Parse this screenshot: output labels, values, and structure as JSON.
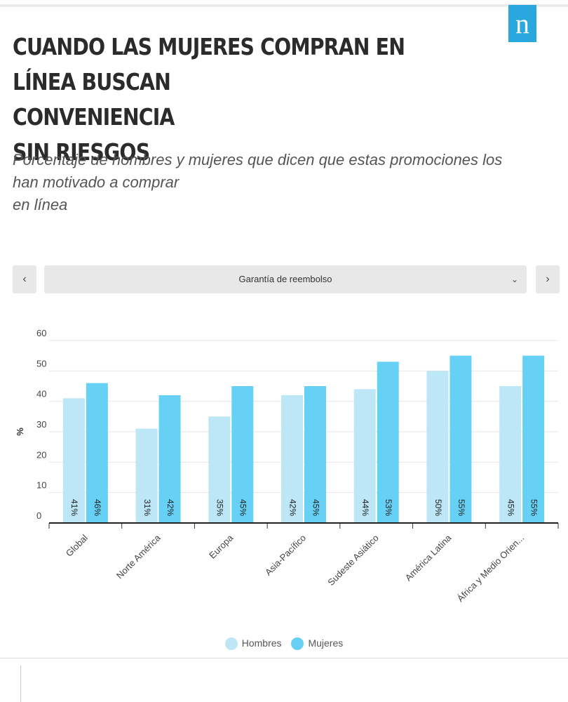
{
  "brand": {
    "logo_letter": "n",
    "color": "#29a8e0"
  },
  "title_lines": [
    "CUANDO LAS MUJERES COMPRAN EN LÍNEA BUSCAN",
    "CONVENIENCIA",
    "SIN RIESGOS"
  ],
  "subtitle_lines": [
    "Porcentaje de hombres y mujeres que dicen que estas promociones los",
    "han motivado a comprar",
    "en línea"
  ],
  "selector": {
    "prev_label": "‹",
    "next_label": "›",
    "selected": "Garantía de reembolso",
    "chevron": "⌄"
  },
  "chart_data": {
    "type": "bar",
    "title": "",
    "xlabel": "",
    "ylabel": "%",
    "ylim": [
      0,
      60
    ],
    "yticks": [
      0,
      10,
      20,
      30,
      40,
      50,
      60
    ],
    "grid": true,
    "categories": [
      "Global",
      "Norte América",
      "Europa",
      "Asia-Pacífico",
      "Sudeste Asiático",
      "América Latina",
      "África y Medio Orien..."
    ],
    "series": [
      {
        "name": "Hombres",
        "color": "#bde6f7",
        "values": [
          41,
          31,
          35,
          42,
          44,
          50,
          45
        ],
        "labels": [
          "41%",
          "31%",
          "35%",
          "42%",
          "44%",
          "50%",
          "45%"
        ]
      },
      {
        "name": "Mujeres",
        "color": "#66d1f5",
        "values": [
          46,
          42,
          45,
          45,
          53,
          55,
          55
        ],
        "labels": [
          "46%",
          "42%",
          "45%",
          "45%",
          "53%",
          "55%",
          "55%"
        ]
      }
    ],
    "legend_position": "bottom"
  }
}
